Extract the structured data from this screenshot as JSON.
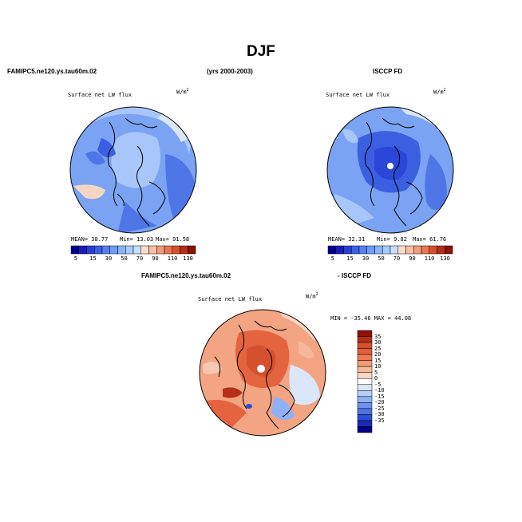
{
  "title": "DJF",
  "header_left": "FAMIPC5.ne120.ys.tau60m.02",
  "header_mid": "(yrs 2000-2003)",
  "header_right": "ISCCP FD",
  "header_bottom_left": "FAMIPC5.ne120.ys.tau60m.02",
  "header_bottom_right": "- ISCCP FD",
  "panels": [
    {
      "variable": "Surface net LW flux",
      "units": "W/m",
      "units_sup": "2",
      "mean": "MEAN=  38.77",
      "min": "Min=  13.03",
      "max": "Max=  91.58"
    },
    {
      "variable": "Surface net LW flux",
      "units": "W/m",
      "units_sup": "2",
      "mean": "MEAN=  32.31",
      "min": "Min=   9.82",
      "max": "Max=  61.76"
    },
    {
      "variable": "Surface net LW flux",
      "units": "W/m",
      "units_sup": "2",
      "minmax": "MIN = -35.46 MAX =  44.08"
    }
  ],
  "colorbar_top": {
    "labels": [
      "5",
      "15",
      "30",
      "50",
      "70",
      "90",
      "110",
      "130"
    ],
    "colors": [
      "#00008a",
      "#1a1ab4",
      "#2a3ed6",
      "#3d5fe6",
      "#5580ef",
      "#6f9af5",
      "#8ab3fa",
      "#a9cbfc",
      "#c9defc",
      "#f9dccb",
      "#f7bfa3",
      "#f19c7a",
      "#e87652",
      "#d5502f",
      "#b72e18",
      "#8a1206"
    ]
  },
  "colorbar_diff": {
    "labels": [
      "35",
      "30",
      "25",
      "20",
      "15",
      "10",
      "5",
      "0",
      "-5",
      "-10",
      "-15",
      "-20",
      "-25",
      "-30",
      "-35"
    ],
    "colors": [
      "#8a1206",
      "#b72e18",
      "#d5502f",
      "#e45f38",
      "#ee7a55",
      "#f19a76",
      "#f6b89a",
      "#fbd6c2",
      "#ffffff",
      "#d8e6fb",
      "#b4cdf9",
      "#8fb0f5",
      "#6d92ef",
      "#4c73e6",
      "#2c4fd8",
      "#1a2ab6",
      "#00008a"
    ]
  },
  "map_colors": {
    "background": "#7aa3f3",
    "light": "#a9c6fb",
    "dark": "#4f76e6",
    "darker": "#3a5fe0",
    "pale": "#dce6fb",
    "diff_bg": "#f3a482",
    "diff_red": "#e4643f",
    "diff_blue": "#8fb0f5"
  }
}
